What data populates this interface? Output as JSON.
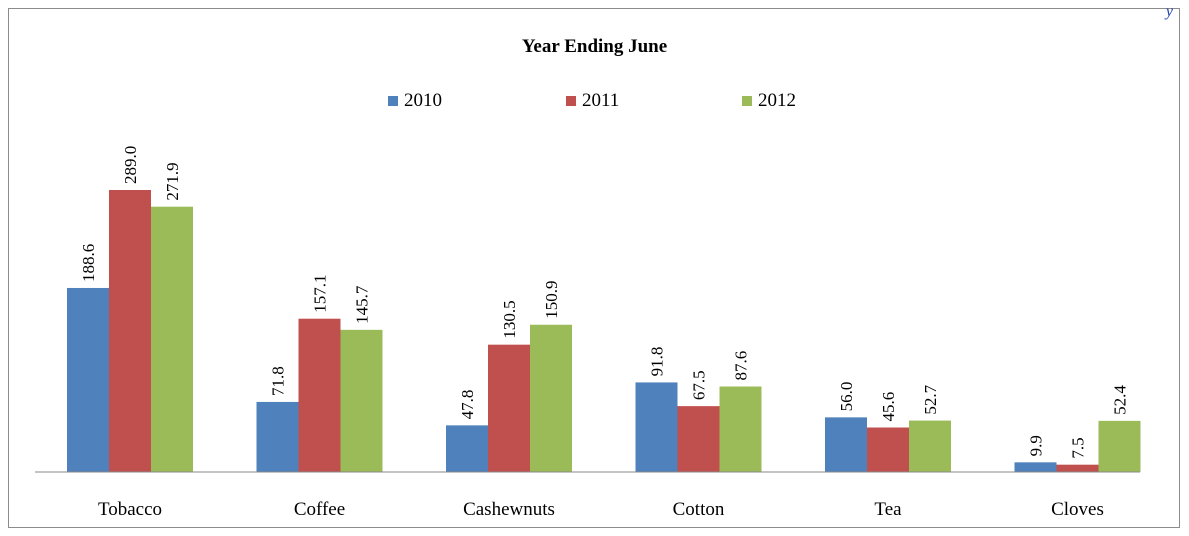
{
  "corner_mark": "y",
  "chart_data": {
    "type": "bar",
    "title": "Year Ending June",
    "categories": [
      "Tobacco",
      "Coffee",
      "Cashewnuts",
      "Cotton",
      "Tea",
      "Cloves"
    ],
    "series": [
      {
        "name": "2010",
        "color": "#4f81bd",
        "values": [
          188.6,
          71.8,
          47.8,
          91.8,
          56.0,
          9.9
        ],
        "labels": [
          "188.6",
          "71.8",
          "47.8",
          "91.8",
          "56.0",
          "9.9"
        ]
      },
      {
        "name": "2011",
        "color": "#c0504d",
        "values": [
          289.0,
          157.1,
          130.5,
          67.5,
          45.6,
          7.5
        ],
        "labels": [
          "289.0",
          "157.1",
          "130.5",
          "67.5",
          "45.6",
          "7.5"
        ]
      },
      {
        "name": "2012",
        "color": "#9bbb59",
        "values": [
          271.9,
          145.7,
          150.9,
          87.6,
          52.7,
          52.4
        ],
        "labels": [
          "271.9",
          "145.7",
          "150.9",
          "87.6",
          "52.7",
          "52.4"
        ]
      }
    ],
    "legend_position": "top-center",
    "grid": false,
    "ylim": [
      0,
      300
    ]
  }
}
